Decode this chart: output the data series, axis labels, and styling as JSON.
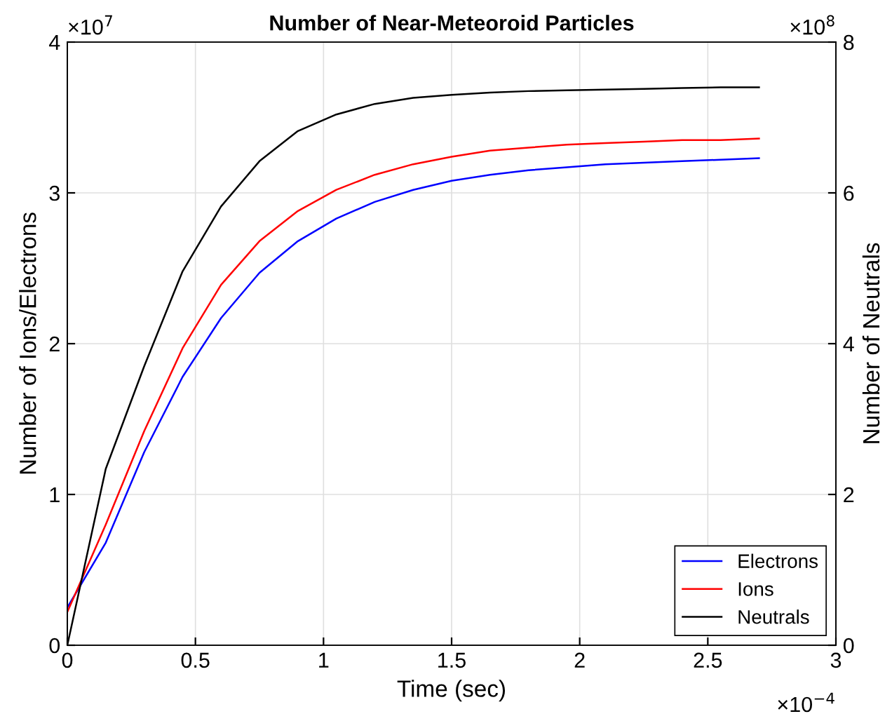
{
  "chart_data": {
    "type": "line",
    "title": "Number of Near-Meteoroid Particles",
    "xlabel": "Time (sec)",
    "ylabel": "Number of Ions/Electrons",
    "y2label": "Number of Neutrals",
    "x": [
      0,
      0.15,
      0.3,
      0.45,
      0.6,
      0.75,
      0.9,
      1.05,
      1.2,
      1.35,
      1.5,
      1.65,
      1.8,
      1.95,
      2.1,
      2.25,
      2.4,
      2.55,
      2.7
    ],
    "series": [
      {
        "name": "Electrons",
        "color": "#0000ff",
        "values": [
          0.25,
          0.68,
          1.28,
          1.78,
          2.17,
          2.47,
          2.68,
          2.83,
          2.94,
          3.02,
          3.08,
          3.12,
          3.15,
          3.17,
          3.19,
          3.2,
          3.21,
          3.22,
          3.23
        ]
      },
      {
        "name": "Ions",
        "color": "#ff0000",
        "values": [
          0.22,
          0.8,
          1.42,
          1.97,
          2.39,
          2.68,
          2.88,
          3.02,
          3.12,
          3.19,
          3.24,
          3.28,
          3.3,
          3.32,
          3.33,
          3.34,
          3.35,
          3.35,
          3.36
        ]
      },
      {
        "name": "Neutrals",
        "color": "#000000",
        "axis": "y2",
        "values": [
          0,
          2.34,
          3.7,
          4.96,
          5.82,
          6.42,
          6.82,
          7.04,
          7.18,
          7.26,
          7.3,
          7.33,
          7.35,
          7.36,
          7.37,
          7.38,
          7.39,
          7.4,
          7.4
        ]
      }
    ],
    "xlim": [
      0,
      3
    ],
    "xticks": [
      0,
      0.5,
      1,
      1.5,
      2,
      2.5,
      3
    ],
    "ylim": [
      0,
      4
    ],
    "yticks": [
      0,
      1,
      2,
      3,
      4
    ],
    "y2lim": [
      0,
      8
    ],
    "y2ticks": [
      0,
      2,
      4,
      6,
      8
    ],
    "annotations": [
      "×10$^{7}$",
      "×10$^{8}$",
      "×10$^{−4}$"
    ],
    "grid": true,
    "legend": "bottom right",
    "marker": "none",
    "line_style": "solid"
  }
}
